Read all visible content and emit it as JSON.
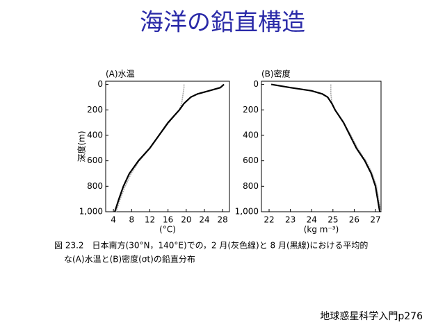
{
  "title": "海洋の鉛直構造",
  "caption": [
    "図 23.2　日本南方(30°N，140°E)での，2 月(灰色線)と 8 月(黒線)における平均的",
    "な(A)水温と(B)密度(σt)の鉛直分布"
  ],
  "reference": "地球惑星科学入門p276",
  "chart_data": [
    {
      "type": "line",
      "title": "(A)水温",
      "xlabel": "(°C)",
      "ylabel": "深度(m)",
      "y": [
        0,
        25,
        50,
        75,
        100,
        150,
        200,
        300,
        400,
        500,
        600,
        700,
        800,
        900,
        1000
      ],
      "series": [
        {
          "color": "#aaaaaa",
          "values": [
            19.5,
            19.5,
            19.4,
            19.3,
            19.2,
            19.0,
            18.5,
            16.2,
            14.1,
            12.1,
            9.7,
            7.9,
            6.6,
            5.5,
            4.6
          ]
        },
        {
          "color": "#000000",
          "values": [
            28.3,
            27.5,
            25.0,
            22.5,
            21.0,
            19.5,
            18.5,
            16.0,
            14.0,
            12.0,
            9.5,
            7.5,
            6.2,
            5.2,
            4.3
          ]
        }
      ],
      "xlim": [
        2.3,
        29.5
      ],
      "xticks": [
        4,
        8,
        12,
        16,
        20,
        24,
        28
      ],
      "ylim": [
        1000,
        -25
      ],
      "yticks": [
        0,
        200,
        400,
        600,
        800,
        {
          "value": 1000,
          "label": "1,000"
        }
      ]
    },
    {
      "type": "line",
      "title": "(B)密度",
      "xlabel": "(kg m⁻³)",
      "y": [
        0,
        25,
        50,
        75,
        100,
        150,
        200,
        300,
        400,
        500,
        600,
        700,
        800,
        900,
        1000
      ],
      "series": [
        {
          "color": "#aaaaaa",
          "values": [
            24.9,
            24.9,
            24.9,
            24.9,
            24.92,
            24.95,
            25.1,
            25.5,
            25.85,
            26.15,
            26.55,
            26.85,
            27.05,
            27.15,
            27.25
          ]
        },
        {
          "color": "#000000",
          "values": [
            22.1,
            23.0,
            24.0,
            24.5,
            24.75,
            24.95,
            25.1,
            25.5,
            25.8,
            26.1,
            26.5,
            26.8,
            27.0,
            27.1,
            27.2
          ]
        }
      ],
      "xlim": [
        21.64,
        27.26
      ],
      "xticks": [
        22,
        23,
        24,
        25,
        26,
        27
      ],
      "ylim": [
        1000,
        -25
      ],
      "yticks": [
        0,
        200,
        400,
        600,
        800,
        {
          "value": 1000,
          "label": "1,000"
        }
      ]
    }
  ]
}
